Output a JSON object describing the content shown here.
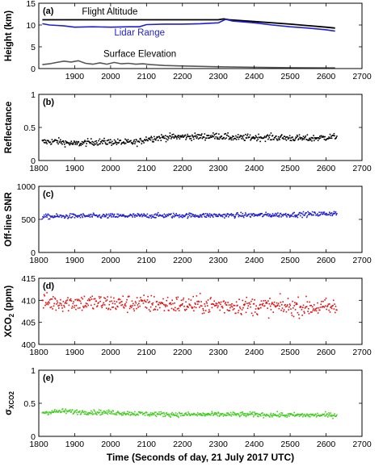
{
  "chart_data": [
    {
      "type": "line",
      "panel_label": "(a)",
      "ylabel": "Height (km)",
      "ylim": [
        0,
        15
      ],
      "yticks": [
        0,
        5,
        10,
        15
      ],
      "xlim": [
        1800,
        2700
      ],
      "xticks": [
        1900,
        2000,
        2100,
        2200,
        2300,
        2400,
        2500,
        2600,
        2700
      ],
      "series": [
        {
          "name": "Flight Altitude",
          "color": "#000000",
          "x": [
            1810,
            1900,
            2000,
            2100,
            2200,
            2300,
            2315,
            2330,
            2400,
            2500,
            2600,
            2625
          ],
          "y": [
            11.2,
            11.2,
            11.2,
            11.2,
            11.2,
            11.2,
            11.4,
            11.2,
            10.8,
            10.2,
            9.5,
            9.3
          ]
        },
        {
          "name": "Lidar Range",
          "color": "#1f1fd0",
          "x": [
            1810,
            1830,
            1850,
            1870,
            1900,
            1950,
            2000,
            2050,
            2080,
            2100,
            2150,
            2200,
            2250,
            2300,
            2320,
            2340,
            2400,
            2450,
            2500,
            2550,
            2600,
            2625
          ],
          "y": [
            10.3,
            10.0,
            9.9,
            9.8,
            9.5,
            9.6,
            9.5,
            9.6,
            9.6,
            10.1,
            10.2,
            10.2,
            10.3,
            10.5,
            11.3,
            10.9,
            10.5,
            10.0,
            9.6,
            9.3,
            8.9,
            8.6
          ]
        },
        {
          "name": "Surface Elevation",
          "color": "#555555",
          "x": [
            1810,
            1830,
            1850,
            1870,
            1890,
            1910,
            1930,
            1950,
            1970,
            1990,
            2010,
            2030,
            2050,
            2070,
            2090,
            2110,
            2150,
            2200,
            2300,
            2400,
            2500,
            2625
          ],
          "y": [
            0.9,
            1.1,
            1.4,
            1.7,
            1.5,
            1.8,
            1.2,
            1.0,
            1.3,
            1.0,
            1.4,
            1.1,
            1.2,
            1.0,
            1.1,
            0.9,
            0.7,
            0.6,
            0.4,
            0.3,
            0.2,
            0.15
          ]
        }
      ],
      "annotations": [
        {
          "text": "Flight Altitude",
          "x": 1920,
          "y": 12.4,
          "color": "#000000"
        },
        {
          "text": "Lidar Range",
          "x": 2010,
          "y": 7.6,
          "color": "#1f1fd0"
        },
        {
          "text": "Surface Elevation",
          "x": 1980,
          "y": 2.7,
          "color": "#000000"
        }
      ]
    },
    {
      "type": "scatter",
      "panel_label": "(b)",
      "ylabel": "Reflectance",
      "ylim": [
        0,
        1
      ],
      "yticks": [
        0,
        0.5,
        1
      ],
      "xlim": [
        1800,
        2700
      ],
      "xticks": [
        1800,
        1900,
        2000,
        2100,
        2200,
        2300,
        2400,
        2500,
        2600,
        2700
      ],
      "color": "#000000",
      "trend": {
        "x": [
          1810,
          1850,
          1900,
          1950,
          2000,
          2050,
          2080,
          2100,
          2150,
          2200,
          2250,
          2300,
          2350,
          2400,
          2450,
          2500,
          2550,
          2600,
          2630
        ],
        "y": [
          0.28,
          0.29,
          0.25,
          0.28,
          0.28,
          0.27,
          0.28,
          0.33,
          0.35,
          0.36,
          0.36,
          0.37,
          0.34,
          0.35,
          0.35,
          0.34,
          0.33,
          0.35,
          0.36
        ]
      },
      "noise": 0.025
    },
    {
      "type": "scatter",
      "panel_label": "(c)",
      "ylabel": "Off-line SNR",
      "ylim": [
        0,
        1000
      ],
      "yticks": [
        0,
        500,
        1000
      ],
      "xlim": [
        1800,
        2700
      ],
      "xticks": [
        1800,
        1900,
        2000,
        2100,
        2200,
        2300,
        2400,
        2500,
        2600,
        2700
      ],
      "color": "#1f1fd0",
      "trend": {
        "x": [
          1810,
          1900,
          2000,
          2100,
          2200,
          2300,
          2400,
          2500,
          2600,
          2630
        ],
        "y": [
          540,
          550,
          550,
          555,
          560,
          560,
          565,
          570,
          585,
          595
        ]
      },
      "noise": 18
    },
    {
      "type": "scatter",
      "panel_label": "(d)",
      "ylabel": "XCO2 (ppm)",
      "ylim": [
        400,
        415
      ],
      "yticks": [
        400,
        405,
        410,
        415
      ],
      "xlim": [
        1800,
        2700
      ],
      "xticks": [
        1800,
        1900,
        2000,
        2100,
        2200,
        2300,
        2400,
        2500,
        2600,
        2700
      ],
      "color": "#e01010",
      "trend": {
        "x": [
          1810,
          1900,
          2000,
          2100,
          2200,
          2300,
          2400,
          2500,
          2600,
          2630
        ],
        "y": [
          409.5,
          409.5,
          409.3,
          409.2,
          409.0,
          408.9,
          408.7,
          408.5,
          408.4,
          408.3
        ]
      },
      "noise": 1.0
    },
    {
      "type": "scatter",
      "panel_label": "(e)",
      "ylabel": "σ XCO2",
      "ylim": [
        0,
        1
      ],
      "yticks": [
        0,
        0.5,
        1
      ],
      "xlim": [
        1800,
        2700
      ],
      "xticks": [
        1800,
        1900,
        2000,
        2100,
        2200,
        2300,
        2400,
        2500,
        2600,
        2700
      ],
      "xlabel": "Time (Seconds of day, 21 July 2017 UTC)",
      "color": "#44cc22",
      "trend": {
        "x": [
          1810,
          1870,
          1900,
          2000,
          2100,
          2200,
          2300,
          2400,
          2500,
          2600,
          2630
        ],
        "y": [
          0.36,
          0.38,
          0.37,
          0.36,
          0.34,
          0.33,
          0.33,
          0.33,
          0.32,
          0.32,
          0.32
        ]
      },
      "noise": 0.018
    }
  ]
}
